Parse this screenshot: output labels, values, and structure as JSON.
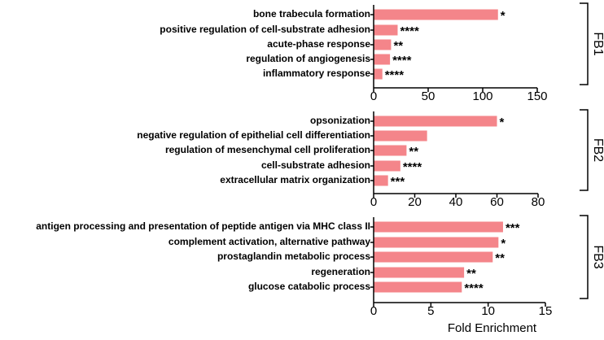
{
  "chart_data": [
    {
      "type": "bar",
      "orientation": "horizontal",
      "group_label": "FB1",
      "color": "#f4858a",
      "categories": [
        "bone trabecula formation",
        "positive regulation of cell-substrate adhesion",
        "acute-phase response",
        "regulation of angiogenesis",
        "inflammatory response"
      ],
      "values": [
        114,
        22,
        16,
        15,
        8
      ],
      "annotations": [
        "*",
        "****",
        "**",
        "****",
        "****"
      ],
      "xlim": [
        0,
        150
      ],
      "xticks": [
        0,
        50,
        100,
        150
      ]
    },
    {
      "type": "bar",
      "orientation": "horizontal",
      "group_label": "FB2",
      "color": "#f4858a",
      "categories": [
        "opsonization",
        "negative regulation of epithelial cell differentiation",
        "regulation of mesenchymal cell proliferation",
        "cell-substrate adhesion",
        "extracellular matrix organization"
      ],
      "values": [
        60,
        26,
        16,
        13,
        7
      ],
      "annotations": [
        "*",
        "",
        "**",
        "****",
        "***"
      ],
      "xlim": [
        0,
        80
      ],
      "xticks": [
        0,
        20,
        40,
        60,
        80
      ]
    },
    {
      "type": "bar",
      "orientation": "horizontal",
      "group_label": "FB3",
      "color": "#f4858a",
      "categories": [
        "antigen processing and presentation of peptide antigen via MHC class II",
        "complement activation, alternative pathway",
        "prostaglandin metabolic process",
        "regeneration",
        "glucose catabolic process"
      ],
      "values": [
        11.3,
        10.9,
        10.4,
        7.9,
        7.7
      ],
      "annotations": [
        "***",
        "*",
        "**",
        "**",
        "****"
      ],
      "xlim": [
        0,
        15
      ],
      "xticks": [
        0,
        5,
        10,
        15
      ],
      "xlabel": "Fold Enrichment"
    }
  ]
}
